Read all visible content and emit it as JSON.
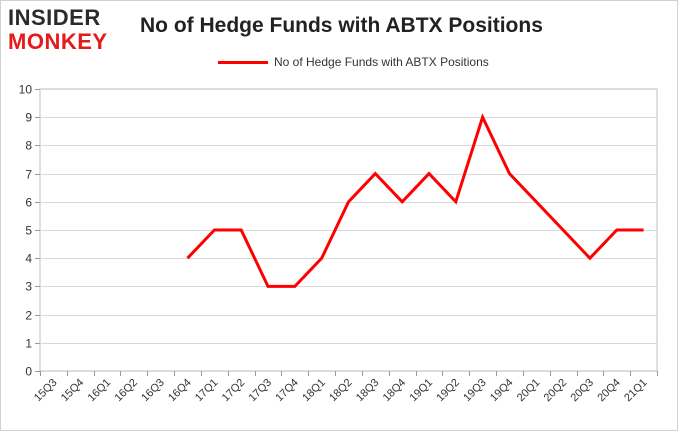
{
  "logo": {
    "line1": "INSIDER",
    "line2": "MONKEY"
  },
  "chart_data": {
    "type": "line",
    "title": "No of Hedge Funds with ABTX Positions",
    "xlabel": "",
    "ylabel": "",
    "categories": [
      "15Q3",
      "15Q4",
      "16Q1",
      "16Q2",
      "16Q3",
      "16Q4",
      "17Q1",
      "17Q2",
      "17Q3",
      "17Q4",
      "18Q1",
      "18Q2",
      "18Q3",
      "18Q4",
      "19Q1",
      "19Q2",
      "19Q3",
      "19Q4",
      "20Q1",
      "20Q2",
      "20Q3",
      "20Q4",
      "21Q1"
    ],
    "series": [
      {
        "name": "No of Hedge Funds with ABTX Positions",
        "color": "#ff0000",
        "values": [
          null,
          null,
          null,
          null,
          null,
          4,
          5,
          5,
          3,
          3,
          4,
          6,
          7,
          6,
          7,
          6,
          9,
          7,
          6,
          5,
          4,
          5,
          5
        ]
      }
    ],
    "ylim": [
      0,
      10
    ],
    "yticks": [
      "0",
      "1",
      "2",
      "3",
      "4",
      "5",
      "6",
      "7",
      "8",
      "9",
      "10"
    ],
    "grid": true,
    "legend_position": "top-center"
  }
}
